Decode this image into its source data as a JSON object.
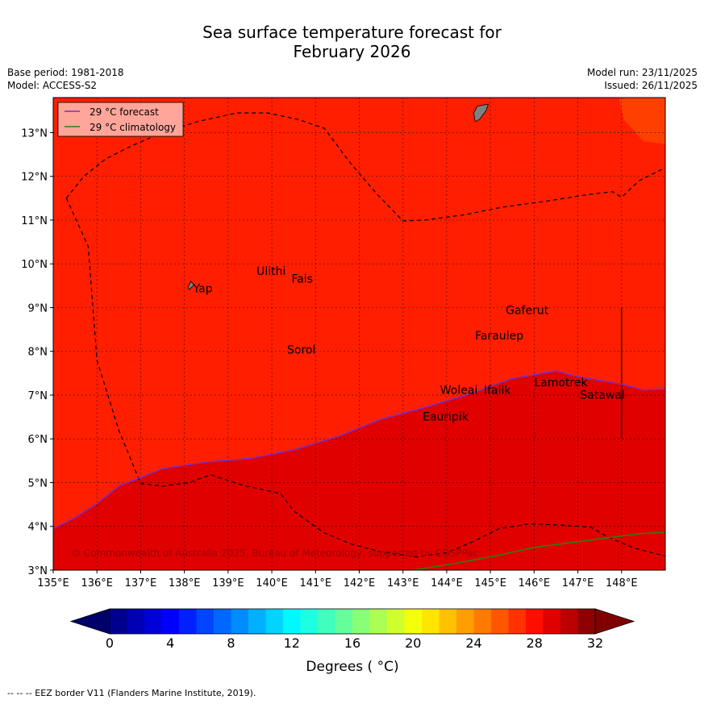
{
  "title": {
    "line1": "Sea surface temperature forecast for",
    "line2": "February 2026"
  },
  "meta_left": {
    "base_period": "Base period: 1981-2018",
    "model": "Model: ACCESS-S2"
  },
  "meta_right": {
    "model_run": "Model run: 23/11/2025",
    "issued": "Issued: 26/11/2025"
  },
  "legend": {
    "forecast": "29 °C  forecast",
    "climatology": "29 °C  climatology",
    "forecast_color": "#7b2fbf",
    "climatology_color": "#2e7d12"
  },
  "map": {
    "lon_range": [
      135,
      149
    ],
    "lat_range": [
      3,
      13.8
    ],
    "lon_ticks": [
      "135°E",
      "136°E",
      "137°E",
      "138°E",
      "139°E",
      "140°E",
      "141°E",
      "142°E",
      "143°E",
      "144°E",
      "145°E",
      "146°E",
      "147°E",
      "148°E"
    ],
    "lat_ticks": [
      "3°N",
      "4°N",
      "5°N",
      "6°N",
      "7°N",
      "8°N",
      "9°N",
      "10°N",
      "11°N",
      "12°N",
      "13°N"
    ],
    "fill_28_29": "#ff1e00",
    "fill_29_30": "#e00000",
    "fill_27_28": "#ff3f00",
    "copyright": "© Commonwealth of Australia 2025, Bureau of Meteorology, supported by COSPPac"
  },
  "places": [
    {
      "name": "Yap",
      "lon": 138.2,
      "lat": 9.35
    },
    {
      "name": "Ulithi",
      "lon": 139.65,
      "lat": 9.75
    },
    {
      "name": "Fais",
      "lon": 140.45,
      "lat": 9.57
    },
    {
      "name": "Sorol",
      "lon": 140.35,
      "lat": 7.95
    },
    {
      "name": "Gaferut",
      "lon": 145.35,
      "lat": 8.85
    },
    {
      "name": "Faraulep",
      "lon": 144.65,
      "lat": 8.27
    },
    {
      "name": "Woleai",
      "lon": 143.85,
      "lat": 7.03
    },
    {
      "name": "Ifalik",
      "lon": 144.85,
      "lat": 7.03
    },
    {
      "name": "Lamotrek",
      "lon": 146.0,
      "lat": 7.2
    },
    {
      "name": "Satawal",
      "lon": 147.05,
      "lat": 6.92
    },
    {
      "name": "Eauripik",
      "lon": 143.45,
      "lat": 6.42
    }
  ],
  "colorbar": {
    "label": "Degrees ( °C)",
    "ticks": [
      "0",
      "4",
      "8",
      "12",
      "16",
      "20",
      "24",
      "28",
      "32"
    ],
    "colors": [
      "#00008f",
      "#0000b4",
      "#0000d8",
      "#0000ff",
      "#0020ff",
      "#0044ff",
      "#0068ff",
      "#008cff",
      "#00b0ff",
      "#00d4ff",
      "#00f8ff",
      "#1cffe2",
      "#40ffbe",
      "#64ff9a",
      "#88ff76",
      "#acff52",
      "#d0ff2e",
      "#f4ff0a",
      "#ffe600",
      "#ffc200",
      "#ff9e00",
      "#ff7a00",
      "#ff5600",
      "#ff3200",
      "#ff0e00",
      "#e00000",
      "#bc0000",
      "#8f0000"
    ],
    "under_color": "#00006a",
    "over_color": "#800000"
  },
  "footer": "--  --  -- EEZ border V11 (Flanders Marine Institute, 2019)."
}
